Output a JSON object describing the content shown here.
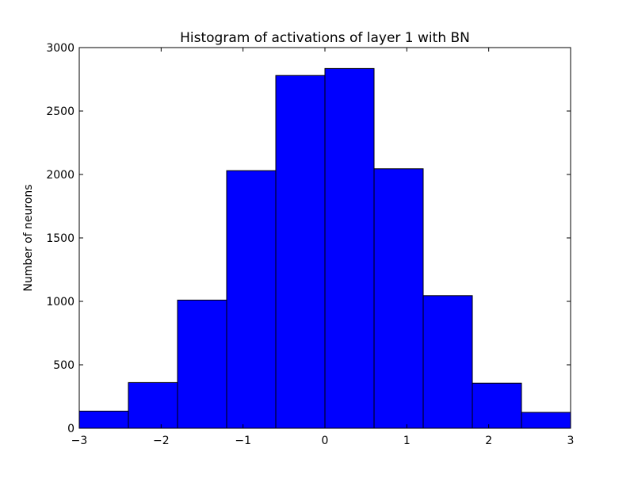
{
  "chart_data": {
    "type": "bar",
    "title": "Histogram of activations of layer 1  with BN",
    "xlabel": "",
    "ylabel": "Number of neurons",
    "xlim": [
      -3,
      3
    ],
    "ylim": [
      0,
      3000
    ],
    "grid": false,
    "bin_edges": [
      -3.0,
      -2.4,
      -1.8,
      -1.2,
      -0.6,
      0.0,
      0.6,
      1.2,
      1.8,
      2.4,
      3.0
    ],
    "values": [
      135,
      360,
      1010,
      2030,
      2780,
      2835,
      2045,
      1045,
      355,
      125
    ],
    "xticks": [
      -3,
      -2,
      -1,
      0,
      1,
      2,
      3
    ],
    "xtick_labels": [
      "−3",
      "−2",
      "−1",
      "0",
      "1",
      "2",
      "3"
    ],
    "yticks": [
      0,
      500,
      1000,
      1500,
      2000,
      2500,
      3000
    ],
    "ytick_labels": [
      "0",
      "500",
      "1000",
      "1500",
      "2000",
      "2500",
      "3000"
    ],
    "bar_color": "#0000ff",
    "edge_color": "#000000"
  }
}
